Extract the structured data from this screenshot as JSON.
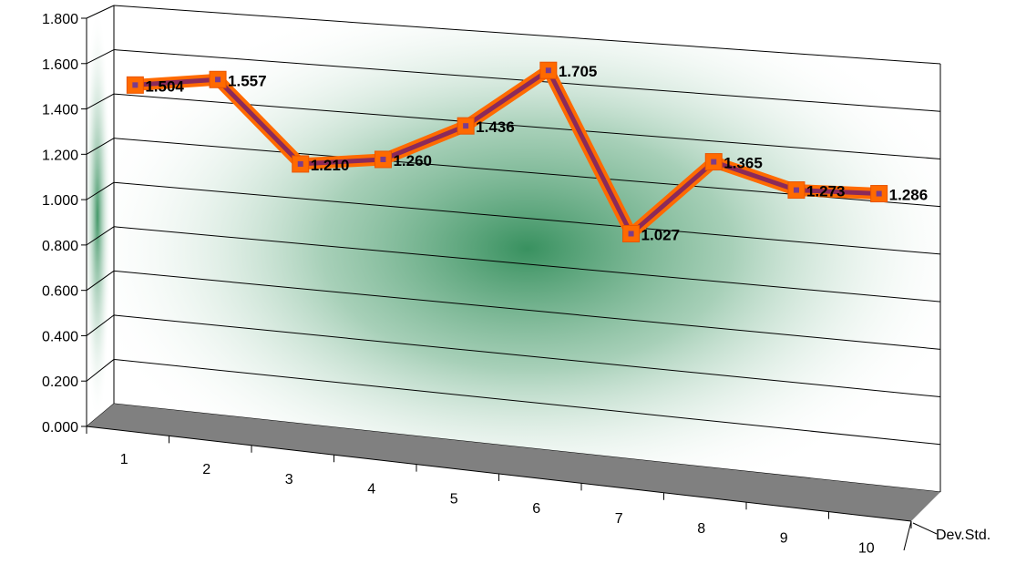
{
  "chart_data": {
    "type": "line",
    "title": "",
    "xlabel": "",
    "ylabel": "",
    "categories": [
      "1",
      "2",
      "3",
      "4",
      "5",
      "6",
      "7",
      "8",
      "9",
      "10"
    ],
    "series": [
      {
        "name": "Dev.Std.",
        "values": [
          1.504,
          1.557,
          1.21,
          1.26,
          1.436,
          1.705,
          1.027,
          1.365,
          1.273,
          1.286
        ],
        "data_labels": [
          "1.504",
          "1.557",
          "1.210",
          "1.260",
          "1.436",
          "1.705",
          "1.027",
          "1.365",
          "1.273",
          "1.286"
        ]
      }
    ],
    "yticks": [
      "0.000",
      "0.200",
      "0.400",
      "0.600",
      "0.800",
      "1.000",
      "1.200",
      "1.400",
      "1.600",
      "1.800"
    ],
    "ylim": [
      0,
      1.8
    ],
    "grid": true,
    "style": "3d-line",
    "colors": {
      "line": "#FF6A00",
      "line_edge": "#8B2A5A",
      "marker": "#FF6A00",
      "marker_center": "#7B3C8C",
      "floor": "#808080",
      "wall_glow": "#2E8B57"
    }
  }
}
